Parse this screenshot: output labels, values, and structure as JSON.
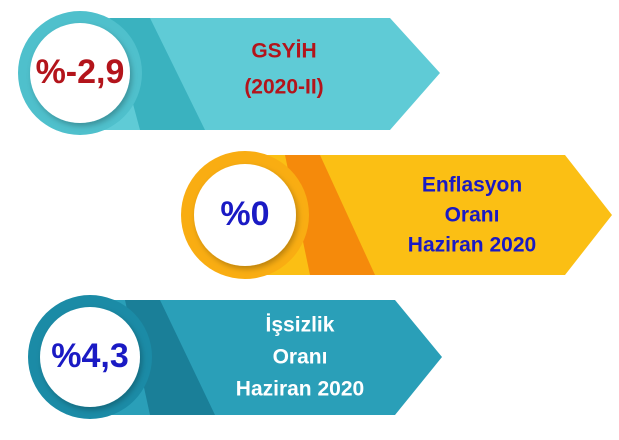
{
  "items": [
    {
      "value": "%-2,9",
      "label": [
        "GSYİH",
        "(2020-II)"
      ]
    },
    {
      "value": "%0",
      "label": [
        "Enflasyon",
        "Oranı",
        "Haziran 2020"
      ]
    },
    {
      "value": "%4,3",
      "label": [
        "İşsizlik",
        "Oranı",
        "Haziran 2020"
      ]
    }
  ]
}
